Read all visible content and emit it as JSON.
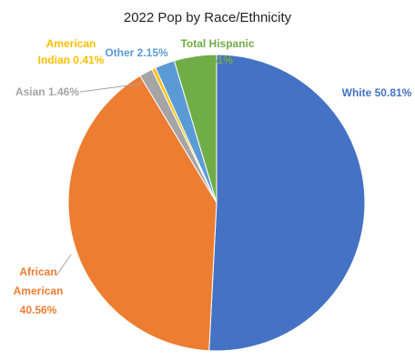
{
  "chart_data": {
    "type": "pie",
    "title": "2022 Pop by Race/Ethnicity",
    "slices": [
      {
        "label_lines": [
          "White 50.81%"
        ],
        "value": 50.81,
        "color": "#4472C4"
      },
      {
        "label_lines": [
          "African",
          "American",
          "40.56%"
        ],
        "value": 40.56,
        "color": "#ED7D31"
      },
      {
        "label_lines": [
          "Asian 1.46%"
        ],
        "value": 1.46,
        "color": "#A5A5A5"
      },
      {
        "label_lines": [
          "American",
          "Indian 0.41%"
        ],
        "value": 0.41,
        "color": "#FFC000"
      },
      {
        "label_lines": [
          "Other 2.15%"
        ],
        "value": 2.15,
        "color": "#5B9BD5"
      },
      {
        "label_lines": [
          "Total Hispanic",
          "4.61%"
        ],
        "value": 4.61,
        "color": "#70AD47"
      }
    ],
    "legend": "none"
  }
}
